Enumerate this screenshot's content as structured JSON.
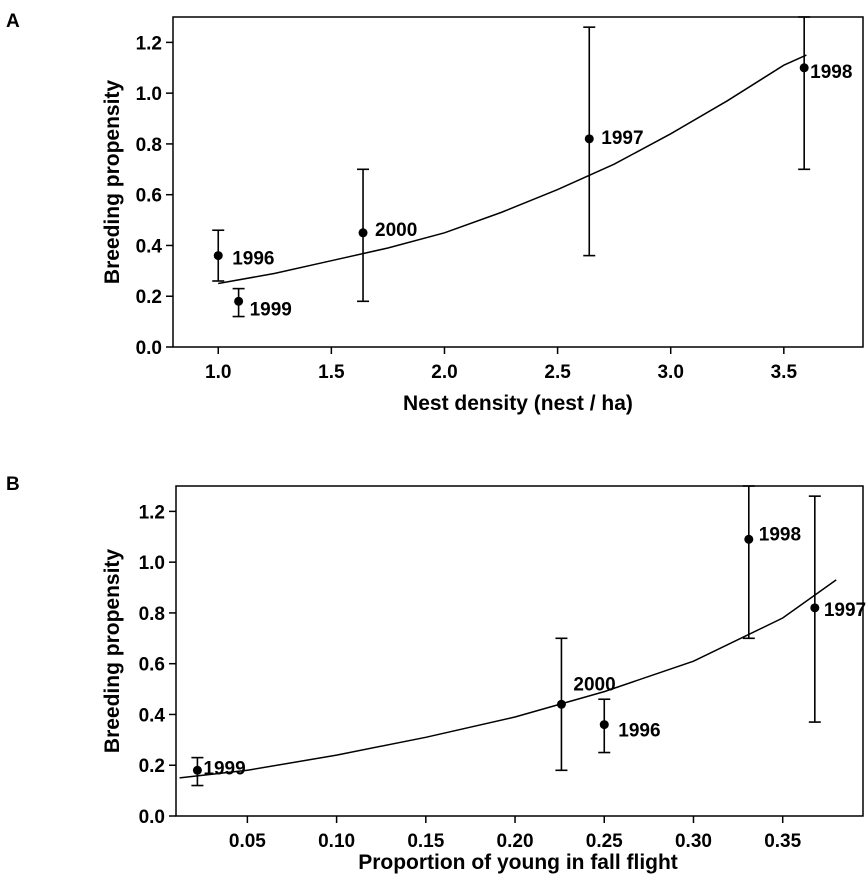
{
  "chart_data": [
    {
      "type": "scatter",
      "panel_label": "A",
      "xlabel": "Nest density (nest / ha)",
      "ylabel": "Breeding propensity",
      "xlim": [
        0.8,
        3.85
      ],
      "ylim": [
        0.0,
        1.3
      ],
      "xticks": [
        1.0,
        1.5,
        2.0,
        2.5,
        3.0,
        3.5
      ],
      "xtick_labels": [
        "1.0",
        "1.5",
        "2.0",
        "2.5",
        "3.0",
        "3.5"
      ],
      "yticks": [
        0.0,
        0.2,
        0.4,
        0.6,
        0.8,
        1.0,
        1.2
      ],
      "ytick_labels": [
        "0.0",
        "0.2",
        "0.4",
        "0.6",
        "0.8",
        "1.0",
        "1.2"
      ],
      "grid": false,
      "points": [
        {
          "label": "1996",
          "x": 1.0,
          "y": 0.36,
          "lower": 0.26,
          "upper": 0.46
        },
        {
          "label": "1999",
          "x": 1.09,
          "y": 0.18,
          "lower": 0.12,
          "upper": 0.23
        },
        {
          "label": "2000",
          "x": 1.64,
          "y": 0.45,
          "lower": 0.18,
          "upper": 0.7
        },
        {
          "label": "1997",
          "x": 2.64,
          "y": 0.82,
          "lower": 0.36,
          "upper": 1.26
        },
        {
          "label": "1998",
          "x": 3.59,
          "y": 1.1,
          "lower": 0.7,
          "upper": 1.3
        }
      ],
      "fit_curve": {
        "x": [
          1.0,
          1.25,
          1.5,
          1.75,
          2.0,
          2.25,
          2.5,
          2.75,
          3.0,
          3.25,
          3.5,
          3.6
        ],
        "y": [
          0.25,
          0.29,
          0.34,
          0.39,
          0.45,
          0.53,
          0.62,
          0.72,
          0.84,
          0.97,
          1.11,
          1.15
        ]
      }
    },
    {
      "type": "scatter",
      "panel_label": "B",
      "xlabel": "Proportion of young in fall flight",
      "ylabel": "Breeding propensity",
      "xlim": [
        0.01,
        0.395
      ],
      "ylim": [
        0.0,
        1.3
      ],
      "xticks": [
        0.05,
        0.1,
        0.15,
        0.2,
        0.25,
        0.3,
        0.35
      ],
      "xtick_labels": [
        "0.05",
        "0.10",
        "0.15",
        "0.20",
        "0.25",
        "0.30",
        "0.35"
      ],
      "yticks": [
        0.0,
        0.2,
        0.4,
        0.6,
        0.8,
        1.0,
        1.2
      ],
      "ytick_labels": [
        "0.0",
        "0.2",
        "0.4",
        "0.6",
        "0.8",
        "1.0",
        "1.2"
      ],
      "grid": false,
      "points": [
        {
          "label": "1999",
          "x": 0.022,
          "y": 0.18,
          "lower": 0.12,
          "upper": 0.23
        },
        {
          "label": "2000",
          "x": 0.226,
          "y": 0.44,
          "lower": 0.18,
          "upper": 0.7
        },
        {
          "label": "1996",
          "x": 0.25,
          "y": 0.36,
          "lower": 0.25,
          "upper": 0.46
        },
        {
          "label": "1998",
          "x": 0.331,
          "y": 1.09,
          "lower": 0.7,
          "upper": 1.3
        },
        {
          "label": "1997",
          "x": 0.368,
          "y": 0.82,
          "lower": 0.37,
          "upper": 1.26
        }
      ],
      "fit_curve": {
        "x": [
          0.012,
          0.05,
          0.1,
          0.15,
          0.2,
          0.25,
          0.3,
          0.35,
          0.38
        ],
        "y": [
          0.15,
          0.18,
          0.24,
          0.31,
          0.39,
          0.49,
          0.61,
          0.78,
          0.93
        ]
      }
    }
  ]
}
